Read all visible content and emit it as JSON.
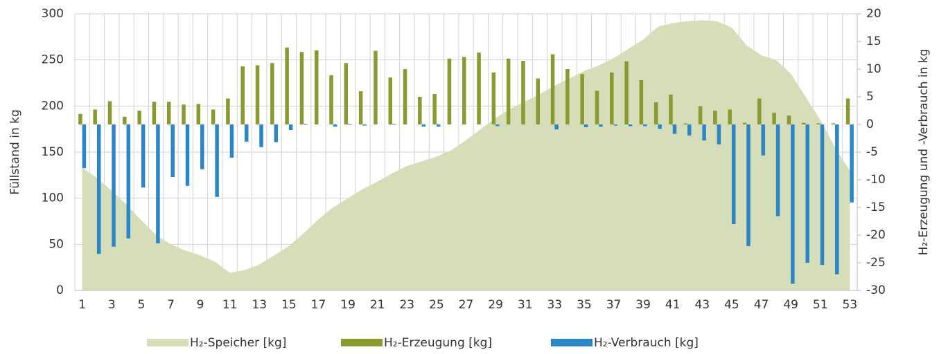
{
  "chart_data": {
    "type": "bar",
    "categories": [
      "1",
      null,
      "3",
      null,
      "5",
      null,
      "7",
      null,
      "9",
      null,
      "11",
      null,
      "13",
      null,
      "15",
      null,
      "17",
      null,
      "19",
      null,
      "21",
      null,
      "23",
      null,
      "25",
      null,
      "27",
      null,
      "29",
      null,
      "31",
      null,
      "33",
      null,
      "35",
      null,
      "37",
      null,
      "39",
      null,
      "41",
      null,
      "43",
      null,
      "45",
      null,
      "47",
      null,
      "49",
      null,
      "51",
      null,
      "53"
    ],
    "ylabel": "Füllstand in kg",
    "y2label": "H₂-Erzeugung und -Verbrauch in kg",
    "ylim": [
      0,
      300
    ],
    "yticks": [
      0,
      50,
      100,
      150,
      200,
      250,
      300
    ],
    "y2lim": [
      -30,
      20
    ],
    "y2ticks": [
      -30,
      -25,
      -20,
      -15,
      -10,
      -5,
      0,
      5,
      10,
      15,
      20
    ],
    "grid": true,
    "legend": "bottom",
    "series": [
      {
        "name": "H₂-Speicher [kg]",
        "type": "area",
        "color": "#d6ddb9",
        "values": [
          133,
          122,
          108,
          93,
          76,
          60,
          50,
          43,
          38,
          31,
          19,
          22,
          28,
          38,
          48,
          62,
          77,
          90,
          100,
          110,
          118,
          127,
          135,
          140,
          145,
          152,
          163,
          175,
          187,
          197,
          205,
          213,
          222,
          230,
          238,
          244,
          252,
          262,
          272,
          286,
          290,
          292,
          293,
          292,
          285,
          266,
          255,
          250,
          235,
          210,
          185,
          155,
          130
        ]
      },
      {
        "name": "H₂-Erzeugung [kg]",
        "type": "bar",
        "axis": "y2",
        "color": "#8a9a2f",
        "values": [
          1.9,
          2.7,
          4.2,
          1.4,
          2.5,
          4.1,
          4.1,
          3.6,
          3.7,
          2.7,
          4.7,
          10.5,
          10.7,
          11.1,
          13.9,
          13.1,
          13.4,
          8.9,
          11.1,
          6,
          13.3,
          8.5,
          10,
          5,
          5.5,
          11.9,
          12.2,
          13,
          9.4,
          11.9,
          11.5,
          8.3,
          12.7,
          10,
          9.1,
          6.1,
          9.4,
          11.4,
          8,
          4,
          5.4,
          0.2,
          3.3,
          2.5,
          2.7,
          0.3,
          4.7,
          2.1,
          1.6,
          0.3,
          0.2,
          0.2,
          4.7
        ]
      },
      {
        "name": "H₂-Verbrauch [kg]",
        "type": "bar",
        "axis": "y2",
        "color": "#2b86c8",
        "values": [
          -7.9,
          -23.4,
          -22.1,
          -20.6,
          -11.4,
          -21.5,
          -9.5,
          -11.1,
          -8.1,
          -13.1,
          -6,
          -3.1,
          -4.1,
          -3.2,
          -1,
          -0.1,
          0,
          -0.4,
          -0.1,
          -0.2,
          0,
          -0.1,
          0,
          -0.4,
          -0.4,
          0,
          0,
          0,
          -0.3,
          0,
          0,
          0,
          -0.9,
          0,
          -0.5,
          -0.4,
          -0.2,
          -0.3,
          -0.3,
          -0.8,
          -1.7,
          -2,
          -2.9,
          -3.6,
          -18,
          -22,
          -5.6,
          -16.6,
          -28.8,
          -25,
          -25.4,
          -27.1,
          -14.1
        ]
      }
    ]
  }
}
